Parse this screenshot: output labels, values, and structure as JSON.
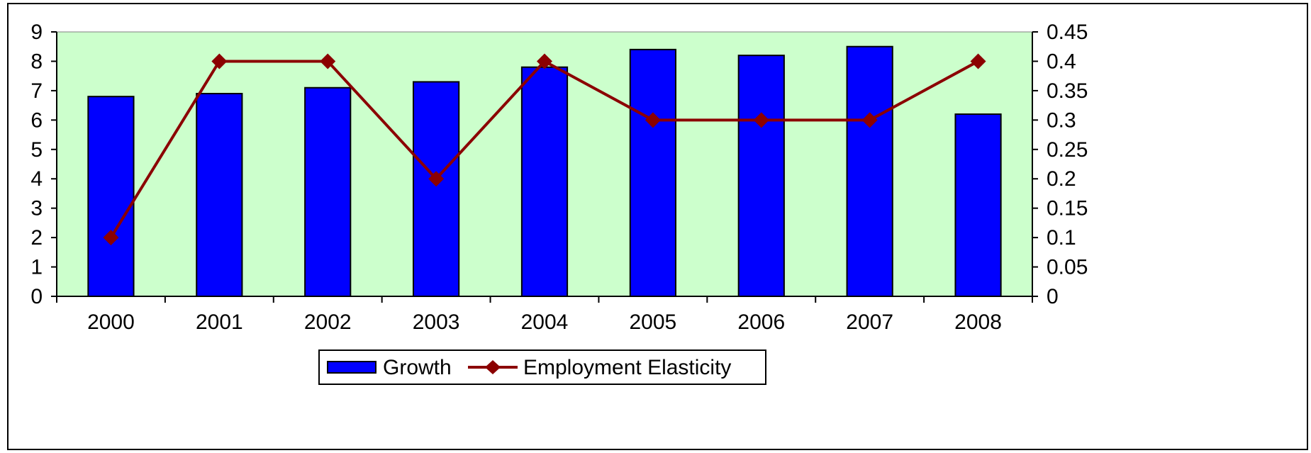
{
  "chart_data": {
    "type": "bar+line",
    "categories": [
      "2000",
      "2001",
      "2002",
      "2003",
      "2004",
      "2005",
      "2006",
      "2007",
      "2008"
    ],
    "series": [
      {
        "name": "Growth",
        "type": "bar",
        "axis": "left",
        "values": [
          6.8,
          6.9,
          7.1,
          7.3,
          7.8,
          8.4,
          8.2,
          8.5,
          6.2
        ],
        "color": "#0000ff"
      },
      {
        "name": "Employment Elasticity",
        "type": "line",
        "axis": "right",
        "values": [
          0.1,
          0.4,
          0.4,
          0.2,
          0.4,
          0.3,
          0.3,
          0.3,
          0.4
        ],
        "color": "#8b0000"
      }
    ],
    "y_left": {
      "ylim": [
        0,
        9
      ],
      "ticks": [
        "0",
        "1",
        "2",
        "3",
        "4",
        "5",
        "6",
        "7",
        "8",
        "9"
      ]
    },
    "y_right": {
      "ylim": [
        0,
        0.45
      ],
      "ticks": [
        "0",
        "0.05",
        "0.1",
        "0.15",
        "0.2",
        "0.25",
        "0.3",
        "0.35",
        "0.4",
        "0.45"
      ]
    },
    "plot_background": "#ccffcc",
    "grid": false,
    "legend_position": "bottom"
  }
}
